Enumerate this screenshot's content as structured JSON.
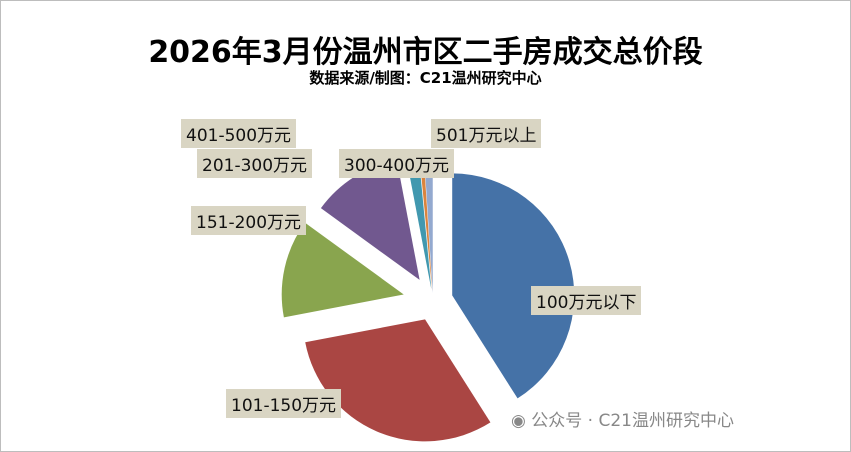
{
  "chart_data": {
    "type": "pie",
    "title": "2026年3月份温州市区二手房成交总价段",
    "subtitle": "数据来源/制图：C21温州研究中心",
    "categories": [
      "100万元以下",
      "101-150万元",
      "151-200万元",
      "201-300万元",
      "300-400万元",
      "401-500万元",
      "501万元以上"
    ],
    "values": [
      41,
      31,
      13,
      12,
      1.5,
      0.5,
      1
    ],
    "colors": [
      "#4572a7",
      "#aa4643",
      "#89a54e",
      "#71588f",
      "#4198af",
      "#db843d",
      "#93a9cf"
    ],
    "legend": "none"
  },
  "watermark": "公众号 · C21温州研究中心"
}
